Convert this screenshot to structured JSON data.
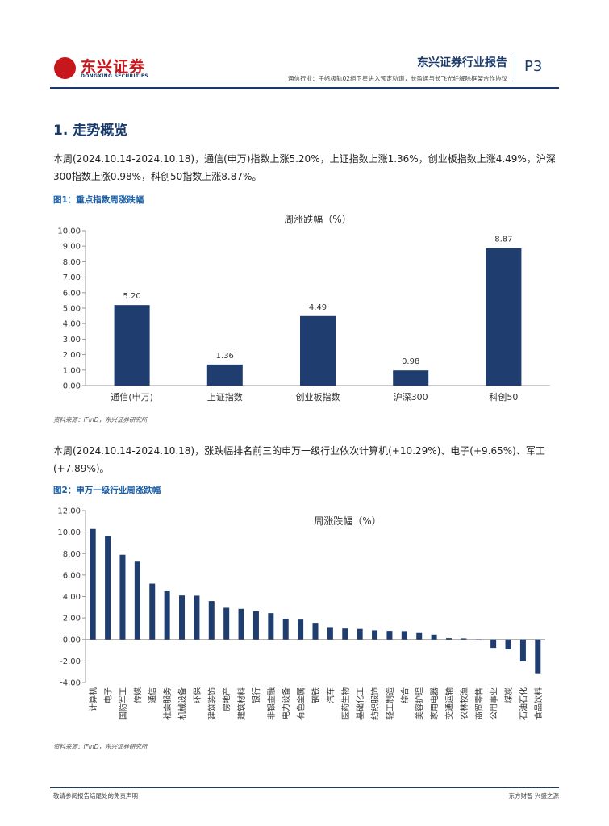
{
  "header": {
    "logo_cn": "东兴证券",
    "logo_en": "DONGXING SECURITIES",
    "title": "东兴证券行业报告",
    "subtitle": "通信行业：千帆极轨02组卫星进入预定轨道，长盈通与长飞光纤解除框架合作协议",
    "page": "P3"
  },
  "section": {
    "title": "1. 走势概览",
    "para1": "本周(2024.10.14-2024.10.18)，通信(申万)指数上涨5.20%，上证指数上涨1.36%，创业板指数上涨4.49%，沪深300指数上涨0.98%，科创50指数上涨8.87%。",
    "para2": "本周(2024.10.14-2024.10.18)，涨跌幅排名前三的申万一级行业依次计算机(+10.29%)、电子(+9.65%)、军工(+7.89%)。"
  },
  "figure1": {
    "caption": "图1：重点指数周涨跌幅",
    "source": "资料来源：iFinD，东兴证券研究所"
  },
  "figure2": {
    "caption": "图2：申万一级行业周涨跌幅",
    "source": "资料来源：iFinD，东兴证券研究所"
  },
  "footer": {
    "left": "敬请参阅报告结尾处的免责声明",
    "right": "东方财智  兴盛之源"
  },
  "colors": {
    "bar": "#1f3d6e",
    "accent": "#1a3a6c",
    "brand": "#c8161d"
  },
  "chart_data": [
    {
      "type": "bar",
      "title": "周涨跌幅（%）",
      "categories": [
        "通信(申万)",
        "上证指数",
        "创业板指数",
        "沪深300",
        "科创50"
      ],
      "values": [
        5.2,
        1.36,
        4.49,
        0.98,
        8.87
      ],
      "value_labels": [
        "5.20",
        "1.36",
        "4.49",
        "0.98",
        "8.87"
      ],
      "yticks": [
        "0.00",
        "1.00",
        "2.00",
        "3.00",
        "4.00",
        "5.00",
        "6.00",
        "7.00",
        "8.00",
        "9.00",
        "10.00"
      ],
      "ylim": [
        0,
        10
      ],
      "grid": false,
      "legend": "none"
    },
    {
      "type": "bar",
      "title": "周涨跌幅（%）",
      "categories": [
        "计算机",
        "电子",
        "国防军工",
        "传媒",
        "通信",
        "社会服务",
        "机械设备",
        "环保",
        "建筑装饰",
        "房地产",
        "建筑材料",
        "银行",
        "非银金融",
        "电力设备",
        "有色金属",
        "钢铁",
        "汽车",
        "医药生物",
        "基础化工",
        "纺织服饰",
        "轻工制造",
        "综合",
        "美容护理",
        "家用电器",
        "交通运输",
        "农林牧渔",
        "商贸零售",
        "公用事业",
        "煤炭",
        "石油石化",
        "食品饮料"
      ],
      "values": [
        10.29,
        9.65,
        7.89,
        7.25,
        5.2,
        4.49,
        4.1,
        4.08,
        3.58,
        2.95,
        2.85,
        2.62,
        2.45,
        1.92,
        1.85,
        1.55,
        1.15,
        1.02,
        0.98,
        0.85,
        0.8,
        0.78,
        0.6,
        0.45,
        0.12,
        0.1,
        -0.05,
        -0.78,
        -0.92,
        -2.05,
        -3.15
      ],
      "yticks": [
        "-4.00",
        "-2.00",
        "0.00",
        "2.00",
        "4.00",
        "6.00",
        "8.00",
        "10.00",
        "12.00"
      ],
      "ylim": [
        -4,
        12
      ],
      "grid": false,
      "legend": "none"
    }
  ]
}
